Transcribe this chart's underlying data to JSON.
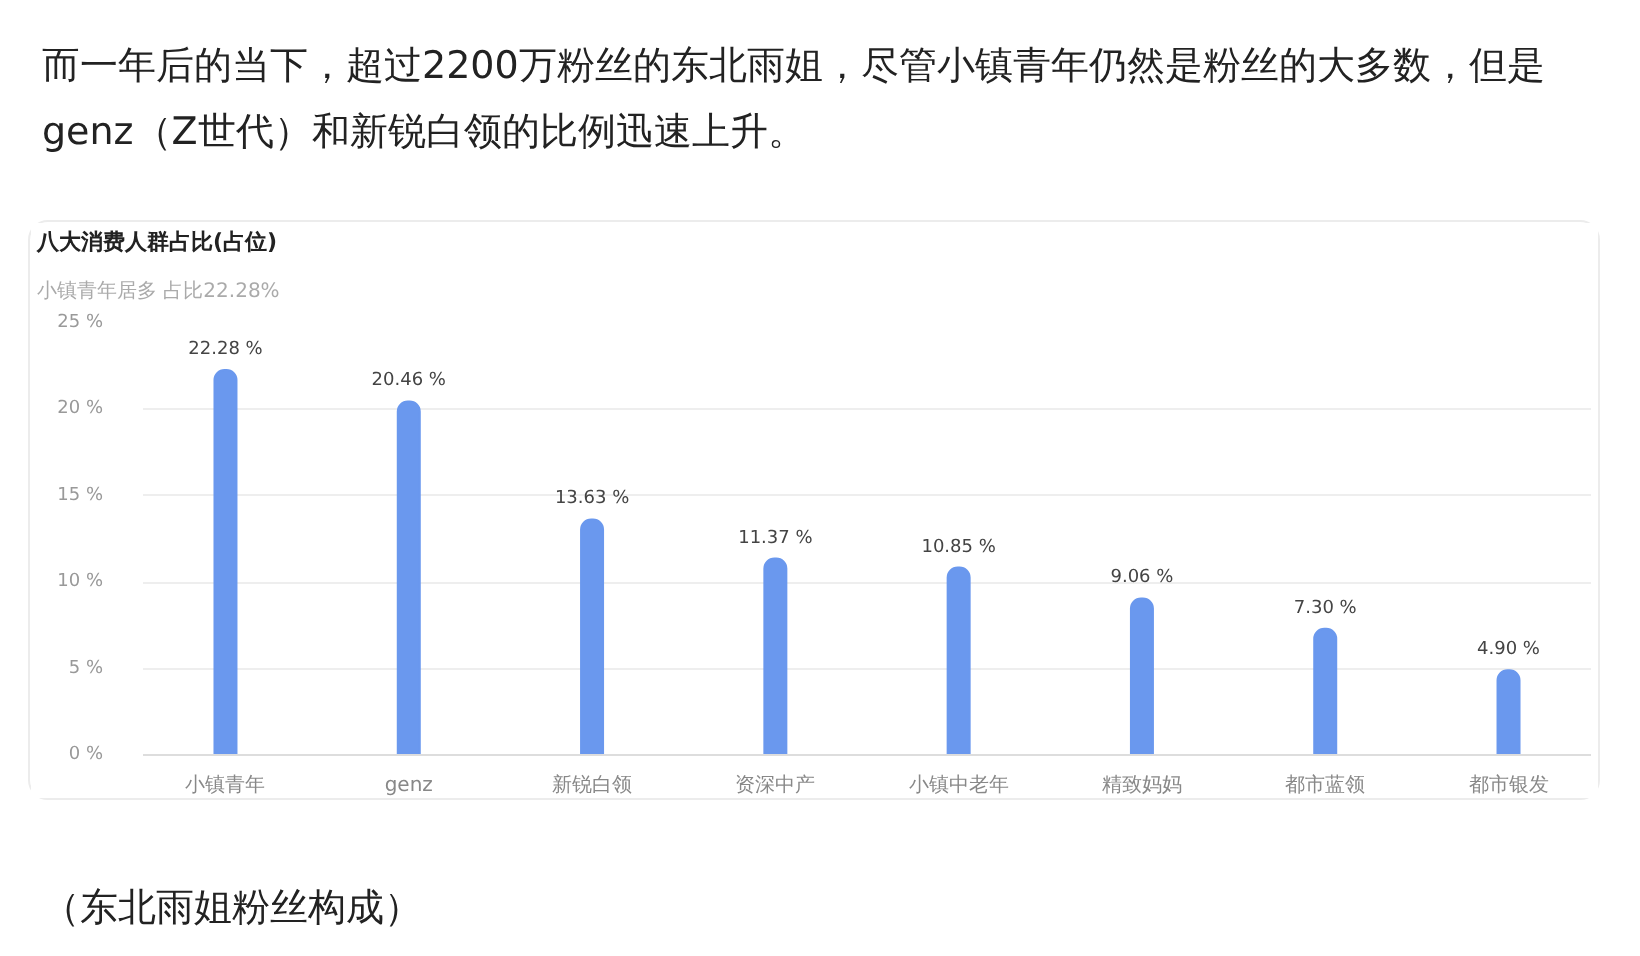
{
  "chart_data": {
    "type": "bar",
    "title": "八大消费人群占比(占位)",
    "subtitle": "小镇青年居多   占比22.28%",
    "annotations": [
      "而一年后的当下，超过2200万粉丝的东北雨姐，尽管小镇青年仍然是粉丝的大多数，但是genz（Z世代）和新锐白领的比例迅速上升。",
      "（东北雨姐粉丝构成）"
    ],
    "categories": [
      "小镇青年",
      "genz",
      "新锐白领",
      "资深中产",
      "小镇中老年",
      "精致妈妈",
      "都市蓝领",
      "都市银发"
    ],
    "values": [
      22.28,
      20.46,
      13.63,
      11.37,
      10.85,
      9.06,
      7.3,
      4.9
    ],
    "value_labels": [
      "22.28 %",
      "20.46 %",
      "13.63 %",
      "11.37 %",
      "10.85 %",
      "9.06 %",
      "7.30 %",
      "4.90 %"
    ],
    "color": "#6a98ee",
    "ylim": [
      0,
      25
    ],
    "yticks": [
      {
        "value": 0,
        "label": "0 %"
      },
      {
        "value": 5,
        "label": "5 %"
      },
      {
        "value": 10,
        "label": "10 %"
      },
      {
        "value": 15,
        "label": "15 %"
      },
      {
        "value": 20,
        "label": "20 %"
      },
      {
        "value": 25,
        "label": "25 %"
      }
    ],
    "grid": "y"
  }
}
